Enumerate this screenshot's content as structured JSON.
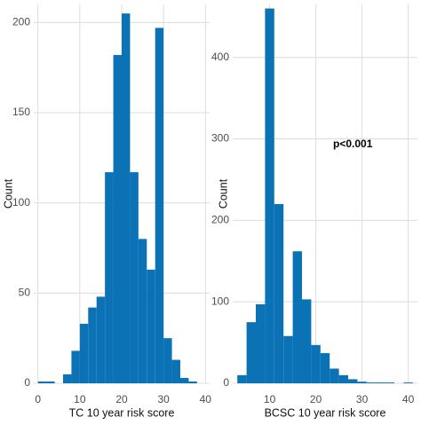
{
  "chart_data": [
    {
      "type": "histogram",
      "color": "#0a72b5",
      "grid": true,
      "xlabel": "TC 10 year risk score",
      "ylabel": "Count",
      "bins": [
        0,
        2,
        4,
        6,
        8,
        10,
        12,
        14,
        16,
        18,
        20,
        22,
        24,
        26,
        28,
        30,
        32,
        34,
        36,
        38,
        40
      ],
      "values": [
        1,
        1,
        0,
        5,
        18,
        33,
        42,
        48,
        117,
        182,
        205,
        117,
        80,
        63,
        197,
        25,
        13,
        3,
        1,
        0
      ],
      "xlim": [
        -1,
        41
      ],
      "ylim": [
        0,
        210
      ],
      "xticks": [
        0,
        10,
        20,
        30,
        40
      ],
      "yticks": [
        0,
        50,
        100,
        150,
        200
      ]
    },
    {
      "type": "histogram",
      "color": "#0a72b5",
      "grid": true,
      "xlabel": "BCSC 10 year risk score",
      "ylabel": "Count",
      "annotation": "p<0.001",
      "bins": [
        3,
        5,
        7,
        9,
        11,
        13,
        15,
        17,
        19,
        21,
        23,
        25,
        27,
        29,
        31,
        33,
        35,
        37,
        39,
        41
      ],
      "values": [
        10,
        75,
        97,
        460,
        220,
        58,
        162,
        103,
        47,
        37,
        18,
        10,
        5,
        2,
        1,
        1,
        1,
        0,
        1
      ],
      "xlim": [
        2,
        42
      ],
      "ylim": [
        0,
        465
      ],
      "xticks": [
        10,
        20,
        30,
        40
      ],
      "yticks": [
        0,
        100,
        200,
        300,
        400
      ]
    }
  ]
}
